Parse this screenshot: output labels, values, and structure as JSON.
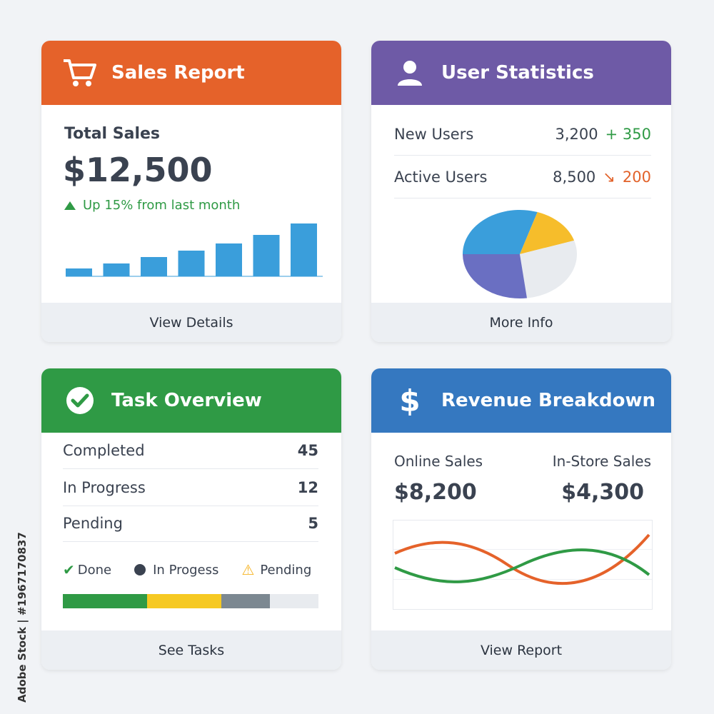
{
  "cards": {
    "sales": {
      "title": "Sales Report",
      "total_label": "Total Sales",
      "total_value": "$12,500",
      "trend": "Up 15% from last month",
      "bar_values": [
        11,
        18,
        27,
        36,
        46,
        58,
        74
      ],
      "footer": "View Details"
    },
    "users": {
      "title": "User Statistics",
      "rows": [
        {
          "label": "New Users",
          "value": "3,200",
          "delta": "+ 350"
        },
        {
          "label": "Active Users",
          "value": "8,500",
          "delta": "200"
        }
      ],
      "pie_shares": [
        {
          "value": 30,
          "color": "#3a9edb"
        },
        {
          "value": 15,
          "color": "#f6bd2b"
        },
        {
          "value": 28,
          "color": "#e8ebef"
        },
        {
          "value": 27,
          "color": "#6a6fc2"
        }
      ],
      "footer": "More Info"
    },
    "tasks": {
      "title": "Task Overview",
      "rows": [
        {
          "label": "Completed",
          "value": "45"
        },
        {
          "label": "In Progress",
          "value": "12"
        },
        {
          "label": "Pending",
          "value": "5"
        }
      ],
      "legend": {
        "done": "Done",
        "progress": "In Progess",
        "pending": "Pending"
      },
      "progress_segments": [
        {
          "value": 33,
          "color": "#2f9a45"
        },
        {
          "value": 29,
          "color": "#f6c922"
        },
        {
          "value": 19,
          "color": "#7c8891"
        },
        {
          "value": 19,
          "color": "#e8ebef"
        }
      ],
      "footer": "See Tasks"
    },
    "revenue": {
      "title": "Revenue Breakdown",
      "online_label": "Online Sales",
      "online_value": "$8,200",
      "instore_label": "In-Store Sales",
      "instore_value": "$4,300",
      "footer": "View Report"
    }
  },
  "colors": {
    "orange": "#e5622a",
    "purple": "#6e5aa6",
    "green": "#2f9a45",
    "blue": "#3578c0"
  },
  "watermark": "Adobe Stock | #1967170837"
}
